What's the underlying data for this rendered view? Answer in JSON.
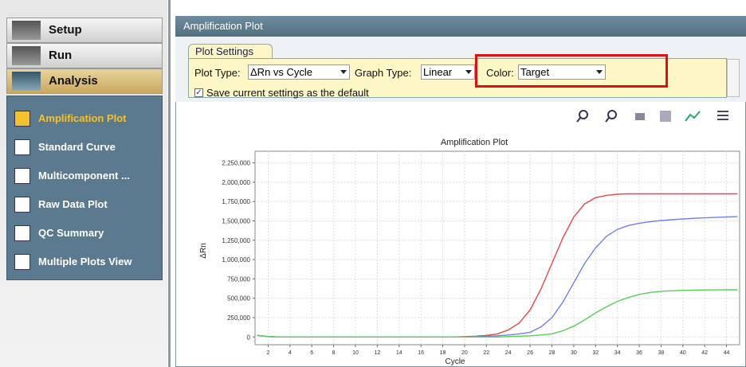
{
  "sidebar": {
    "nav": [
      "Setup",
      "Run",
      "Analysis"
    ],
    "items": [
      "Amplification Plot",
      "Standard Curve",
      "Multicomponent ...",
      "Raw Data Plot",
      "QC Summary",
      "Multiple Plots View"
    ]
  },
  "panel": {
    "title": "Amplification Plot",
    "tab": "Plot Settings",
    "plot_type_label": "Plot Type:",
    "plot_type": "ΔRn vs Cycle",
    "graph_type_label": "Graph Type:",
    "graph_type": "Linear",
    "color_label": "Color:",
    "color": "Target",
    "save_default": "Save current settings as the default"
  },
  "chart_data": {
    "type": "line",
    "title": "Amplification Plot",
    "x_label": "Cycle",
    "y_label": "ΔRn",
    "x": [
      1,
      2,
      3,
      4,
      5,
      6,
      7,
      8,
      9,
      10,
      11,
      12,
      13,
      14,
      15,
      16,
      17,
      18,
      19,
      20,
      21,
      22,
      23,
      24,
      25,
      26,
      27,
      28,
      29,
      30,
      31,
      32,
      33,
      34,
      35,
      36,
      37,
      38,
      39,
      40,
      41,
      42,
      43,
      44,
      45
    ],
    "series": [
      {
        "name": "Red",
        "color": "#e84545",
        "values": [
          20000,
          5000,
          0,
          0,
          0,
          0,
          0,
          0,
          0,
          0,
          0,
          0,
          0,
          0,
          0,
          0,
          0,
          0,
          0,
          5000,
          10000,
          20000,
          40000,
          90000,
          180000,
          350000,
          620000,
          950000,
          1280000,
          1550000,
          1720000,
          1800000,
          1830000,
          1845000,
          1850000,
          1850000,
          1850000,
          1850000,
          1850000,
          1850000,
          1850000,
          1850000,
          1850000,
          1850000,
          1850000
        ]
      },
      {
        "name": "Blue",
        "color": "#7080e8",
        "values": [
          20000,
          5000,
          0,
          0,
          0,
          0,
          0,
          0,
          0,
          0,
          0,
          0,
          0,
          0,
          0,
          0,
          0,
          0,
          0,
          0,
          5000,
          10000,
          15000,
          25000,
          40000,
          60000,
          130000,
          250000,
          450000,
          700000,
          950000,
          1150000,
          1300000,
          1390000,
          1440000,
          1470000,
          1490000,
          1505000,
          1515000,
          1525000,
          1533000,
          1540000,
          1545000,
          1550000,
          1555000
        ]
      },
      {
        "name": "Green",
        "color": "#55d055",
        "values": [
          20000,
          5000,
          0,
          0,
          0,
          0,
          0,
          0,
          0,
          0,
          0,
          0,
          0,
          0,
          0,
          0,
          0,
          0,
          0,
          0,
          0,
          0,
          0,
          5000,
          10000,
          15000,
          25000,
          40000,
          80000,
          140000,
          220000,
          310000,
          390000,
          460000,
          510000,
          550000,
          575000,
          590000,
          598000,
          603000,
          606000,
          608000,
          609000,
          610000,
          610000
        ]
      }
    ],
    "xlim": [
      0.8,
      45.2
    ],
    "xticks": [
      2,
      4,
      6,
      8,
      10,
      12,
      14,
      16,
      18,
      20,
      22,
      24,
      26,
      28,
      30,
      32,
      34,
      36,
      38,
      40,
      42,
      44
    ],
    "ylim": [
      -100000,
      2400000
    ],
    "yticks": [
      0,
      {
        "value": 250000,
        "label": "250,000"
      },
      {
        "value": 500000,
        "label": "500,000"
      },
      {
        "value": 750000,
        "label": "750,000"
      },
      {
        "value": 1000000,
        "label": "1,000,000"
      },
      {
        "value": 1250000,
        "label": "1,250,000"
      },
      {
        "value": 1500000,
        "label": "1,500,000"
      },
      {
        "value": 1750000,
        "label": "1,750,000"
      },
      {
        "value": 2000000,
        "label": "2,000,000"
      },
      {
        "value": 2250000,
        "label": "2,250,000"
      }
    ],
    "grid": true
  }
}
